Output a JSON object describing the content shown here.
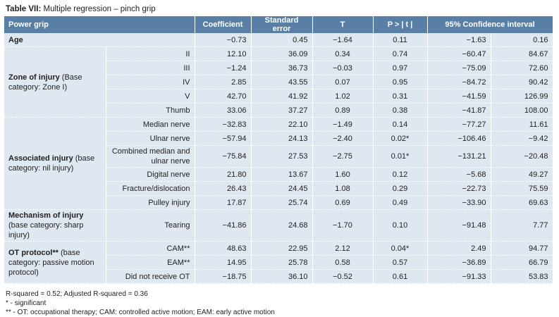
{
  "title_label": "Table VII:",
  "title_text": "Multiple regression – pinch grip",
  "table": {
    "header": [
      "Power grip",
      "Coefficient",
      "Standard error",
      "T",
      "P > | t |",
      "95% Confidence interval"
    ],
    "groups": [
      {
        "label": "Age",
        "rows": [
          {
            "cells": [
              "−0.73",
              "0.45",
              "−1.64",
              "0.11",
              "−1.63",
              "0.16"
            ]
          }
        ]
      },
      {
        "label": "Zone of injury",
        "note": "(Base category: Zone I)",
        "rows": [
          {
            "sub": "II",
            "cells": [
              "12.10",
              "36.09",
              "0.34",
              "0.74",
              "−60.47",
              "84.67"
            ]
          },
          {
            "sub": "III",
            "cells": [
              "−1.24",
              "36.73",
              "−0.03",
              "0.97",
              "−75.09",
              "72.60"
            ]
          },
          {
            "sub": "IV",
            "cells": [
              "2.85",
              "43.55",
              "0.07",
              "0.95",
              "−84.72",
              "90.42"
            ]
          },
          {
            "sub": "V",
            "cells": [
              "42.70",
              "41.92",
              "1.02",
              "0.31",
              "−41.59",
              "126.99"
            ]
          },
          {
            "sub": "Thumb",
            "cells": [
              "33.06",
              "37.27",
              "0.89",
              "0.38",
              "−41.87",
              "108.00"
            ]
          }
        ]
      },
      {
        "label": "Associated injury",
        "note": "(base category: nil injury)",
        "rows": [
          {
            "sub": "Median nerve",
            "cells": [
              "−32.83",
              "22.10",
              "−1.49",
              "0.14",
              "−77.27",
              "11.61"
            ]
          },
          {
            "sub": "Ulnar nerve",
            "cells": [
              "−57.94",
              "24.13",
              "−2.40",
              "0.02*",
              "−106.46",
              "−9.42"
            ]
          },
          {
            "sub": "Combined median and ulnar nerve",
            "cells": [
              "−75.84",
              "27.53",
              "−2.75",
              "0.01*",
              "−131.21",
              "−20.48"
            ]
          },
          {
            "sub": "Digital nerve",
            "cells": [
              "21.80",
              "13.67",
              "1.60",
              "0.12",
              "−5.68",
              "49.27"
            ]
          },
          {
            "sub": "Fracture/dislocation",
            "cells": [
              "26.43",
              "24.45",
              "1.08",
              "0.29",
              "−22.73",
              "75.59"
            ]
          },
          {
            "sub": "Pulley injury",
            "cells": [
              "17.87",
              "25.74",
              "0.69",
              "0.49",
              "−33.90",
              "69.63"
            ]
          }
        ]
      },
      {
        "label": "Mechanism of injury",
        "note": "(base category: sharp injury)",
        "rows": [
          {
            "sub": "Tearing",
            "cells": [
              "−41.86",
              "24.68",
              "−1.70",
              "0.10",
              "−91.48",
              "7.77"
            ]
          }
        ]
      },
      {
        "label": "OT protocol**",
        "note": "(base category: passive motion protocol)",
        "rows": [
          {
            "sub": "CAM**",
            "cells": [
              "48.63",
              "22.95",
              "2.12",
              "0.04*",
              "2.49",
              "94.77"
            ]
          },
          {
            "sub": "EAM**",
            "cells": [
              "14.95",
              "25.78",
              "0.58",
              "0.57",
              "−36.89",
              "66.79"
            ]
          },
          {
            "sub": "Did not receive OT",
            "cells": [
              "−18.75",
              "36.10",
              "−0.52",
              "0.61",
              "−91.33",
              "53.83"
            ]
          }
        ]
      }
    ]
  },
  "footnotes": [
    "R-squared = 0.52; Adjusted R-squared = 0.36",
    "* - significant",
    "** - OT: occupational therapy; CAM: controlled active motion; EAM: early active motion"
  ]
}
